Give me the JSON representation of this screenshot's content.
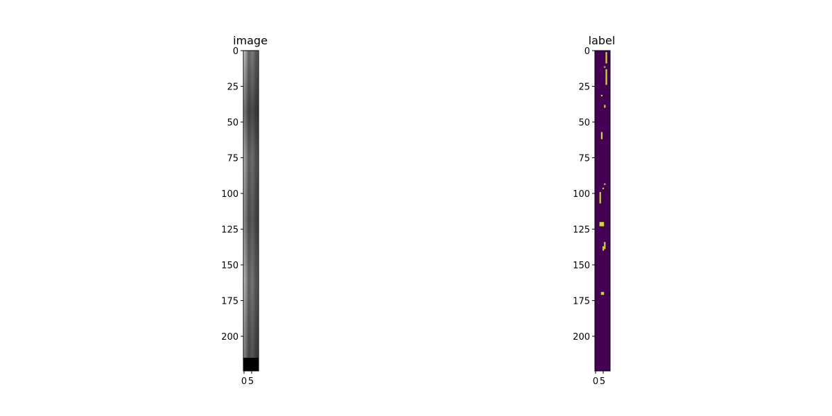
{
  "panels": [
    {
      "title": "image",
      "colormap": "gray",
      "y_ticks": [
        "0",
        "25",
        "50",
        "75",
        "100",
        "125",
        "150",
        "175",
        "200"
      ],
      "x_ticks": [
        "0",
        "5"
      ]
    },
    {
      "title": "label",
      "colormap": "viridis",
      "background_color": "#440154",
      "mask_color": "#c8e020",
      "y_ticks": [
        "0",
        "25",
        "50",
        "75",
        "100",
        "125",
        "150",
        "175",
        "200"
      ],
      "x_ticks": [
        "0",
        "5"
      ],
      "mask_regions": [
        {
          "x": [
            7,
            8
          ],
          "y": [
            1,
            9
          ]
        },
        {
          "x": [
            6,
            7
          ],
          "y": [
            11,
            12
          ]
        },
        {
          "x": [
            7,
            8
          ],
          "y": [
            13,
            24
          ]
        },
        {
          "x": [
            4,
            5
          ],
          "y": [
            31,
            32
          ]
        },
        {
          "x": [
            6,
            7
          ],
          "y": [
            38,
            40
          ]
        },
        {
          "x": [
            4,
            5
          ],
          "y": [
            57,
            62
          ]
        },
        {
          "x": [
            6,
            7
          ],
          "y": [
            93,
            94
          ]
        },
        {
          "x": [
            5,
            6
          ],
          "y": [
            96,
            97
          ]
        },
        {
          "x": [
            3,
            4
          ],
          "y": [
            99,
            107
          ]
        },
        {
          "x": [
            3,
            6
          ],
          "y": [
            120,
            123
          ]
        },
        {
          "x": [
            6,
            7
          ],
          "y": [
            134,
            139
          ]
        },
        {
          "x": [
            5,
            6
          ],
          "y": [
            137,
            140
          ]
        },
        {
          "x": [
            4,
            6
          ],
          "y": [
            169,
            171
          ]
        }
      ]
    }
  ]
}
